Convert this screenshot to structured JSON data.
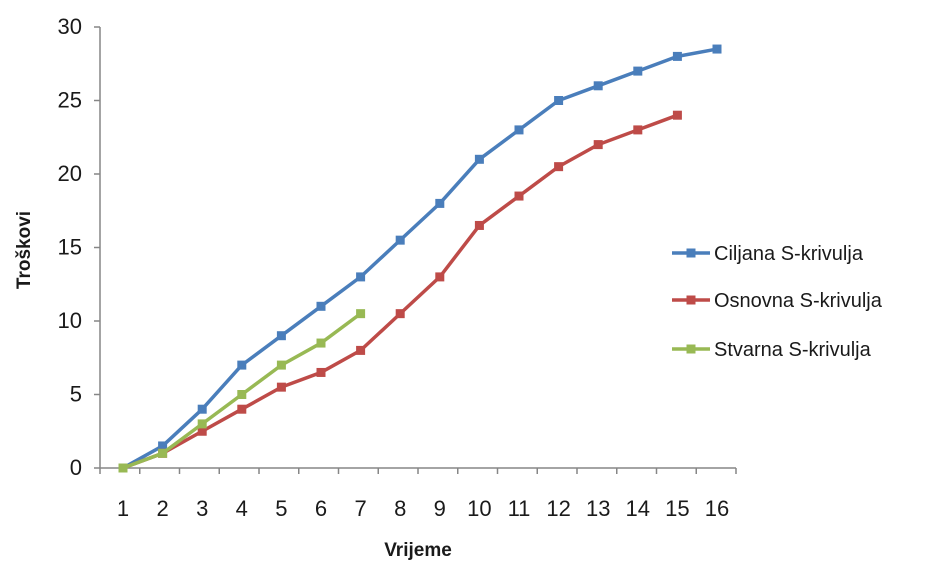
{
  "chart_data": {
    "type": "line",
    "xlabel": "Vrijeme",
    "ylabel": "Troškovi",
    "xlim": [
      1,
      16
    ],
    "ylim": [
      0,
      30
    ],
    "y_ticks": [
      0,
      5,
      10,
      15,
      20,
      25,
      30
    ],
    "x_ticks": [
      1,
      2,
      3,
      4,
      5,
      6,
      7,
      8,
      9,
      10,
      11,
      12,
      13,
      14,
      15,
      16
    ],
    "grid": false,
    "legend_position": "right",
    "series": [
      {
        "name": "Ciljana S-krivulja",
        "color": "#4a7ebb",
        "x": [
          1,
          2,
          3,
          4,
          5,
          6,
          7,
          8,
          9,
          10,
          11,
          12,
          13,
          14,
          15,
          16
        ],
        "values": [
          0,
          1.5,
          4,
          7,
          9,
          11,
          13,
          15.5,
          18,
          21,
          23,
          25,
          26,
          27,
          28,
          28.5
        ]
      },
      {
        "name": "Osnovna S-krivulja",
        "color": "#be4b48",
        "x": [
          1,
          2,
          3,
          4,
          5,
          6,
          7,
          8,
          9,
          10,
          11,
          12,
          13,
          14,
          15
        ],
        "values": [
          0,
          1,
          2.5,
          4,
          5.5,
          6.5,
          8,
          10.5,
          13,
          16.5,
          18.5,
          20.5,
          22,
          23,
          24
        ]
      },
      {
        "name": "Stvarna S-krivulja",
        "color": "#98b954",
        "x": [
          1,
          2,
          3,
          4,
          5,
          6,
          7
        ],
        "values": [
          0,
          1,
          3,
          5,
          7,
          8.5,
          10.5
        ]
      }
    ]
  }
}
